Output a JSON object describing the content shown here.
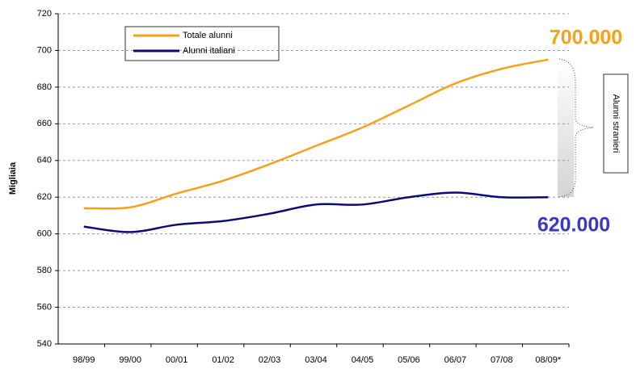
{
  "chart_data": {
    "type": "line",
    "y_label": "Migliaia",
    "categories": [
      "98/99",
      "99/00",
      "00/01",
      "01/02",
      "02/03",
      "03/04",
      "04/05",
      "05/06",
      "06/07",
      "07/08",
      "08/09*"
    ],
    "series": [
      {
        "name": "Totale alunni",
        "color": "#f7a11a",
        "values": [
          614,
          614.5,
          622,
          629,
          638,
          648,
          658,
          670,
          682,
          690,
          695
        ]
      },
      {
        "name": "Alunni italiani",
        "color": "#0a0a78",
        "values": [
          604,
          601,
          605,
          607,
          611,
          616,
          616,
          620,
          622.5,
          620,
          620
        ]
      }
    ],
    "ylim": [
      540,
      720
    ],
    "yticks": [
      540,
      560,
      580,
      600,
      620,
      640,
      660,
      680,
      700,
      720
    ],
    "grid": true,
    "annotations": {
      "top": "700.000",
      "bottom": "620.000",
      "side": "Alunni stranieri"
    }
  }
}
